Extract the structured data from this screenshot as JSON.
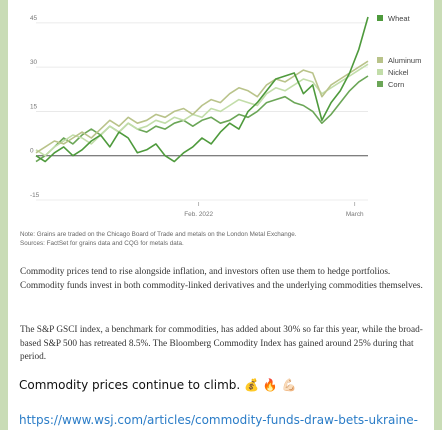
{
  "message": {
    "note_line1": "Note: Grains are traded on the Chicago Board of Trade and metals on the London Metal Exchange.",
    "note_line2": "Sources: FactSet for grains data and CQG for metals data.",
    "paragraph1": "Commodity prices tend to rise alongside inflation, and investors often use them to hedge portfolios. Commodity funds invest in both commodity-linked derivatives and the underlying commodities themselves.",
    "paragraph2": "The S&P GSCI index, a benchmark for commodities, has added about 30% so far this year, while the broad-based S&P 500 has retreated 8.5%. The Bloomberg Commodity Index has gained around 25% during that period.",
    "caption": "Commodity prices continue to climb. 💰 🔥 💪🏻",
    "link": "https://www.wsj.com/articles/commodity-funds-draw-bets-ukraine-"
  },
  "colors": {
    "wheat": "#4e9a3c",
    "aluminum": "#b9c38a",
    "nickel": "#c2dda9",
    "corn": "#6ba657",
    "background": "#c9dcb6",
    "link": "#2a7cc7"
  },
  "chart_data": {
    "type": "line",
    "y_ticks": [
      "45",
      "30",
      "15",
      "0",
      "-15"
    ],
    "x_ticks": [
      "Feb. 2022",
      "March"
    ],
    "ylim": [
      -15,
      48
    ],
    "grid": true,
    "legend_placement": "right",
    "series": [
      {
        "name": "Wheat",
        "color": "#4e9a3c",
        "values": [
          0,
          -2,
          1,
          3,
          0,
          2,
          5,
          7,
          3,
          8,
          6,
          1,
          2,
          4,
          0,
          -2,
          1,
          3,
          6,
          4,
          8,
          11,
          9,
          15,
          18,
          22,
          26,
          27,
          28,
          21,
          24,
          12,
          18,
          22,
          28,
          36,
          47
        ]
      },
      {
        "name": "Aluminum",
        "color": "#b9c38a",
        "values": [
          1,
          3,
          5,
          4,
          6,
          8,
          6,
          9,
          12,
          10,
          13,
          11,
          12,
          14,
          13,
          15,
          16,
          14,
          17,
          19,
          18,
          21,
          23,
          22,
          20,
          24,
          26,
          25,
          27,
          29,
          28,
          20,
          24,
          26,
          28,
          30,
          32
        ]
      },
      {
        "name": "Nickel",
        "color": "#c2dda9",
        "values": [
          2,
          0,
          3,
          5,
          7,
          6,
          4,
          7,
          10,
          8,
          11,
          9,
          10,
          12,
          11,
          13,
          12,
          14,
          13,
          16,
          15,
          17,
          19,
          18,
          17,
          21,
          23,
          22,
          24,
          26,
          25,
          21,
          23,
          25,
          27,
          29,
          31
        ]
      },
      {
        "name": "Corn",
        "color": "#6ba657",
        "values": [
          -2,
          0,
          3,
          6,
          4,
          7,
          9,
          7,
          10,
          8,
          11,
          9,
          8,
          10,
          9,
          11,
          12,
          10,
          12,
          13,
          11,
          12,
          14,
          13,
          15,
          18,
          19,
          20,
          18,
          17,
          15,
          11,
          14,
          18,
          22,
          25,
          27
        ]
      }
    ]
  }
}
